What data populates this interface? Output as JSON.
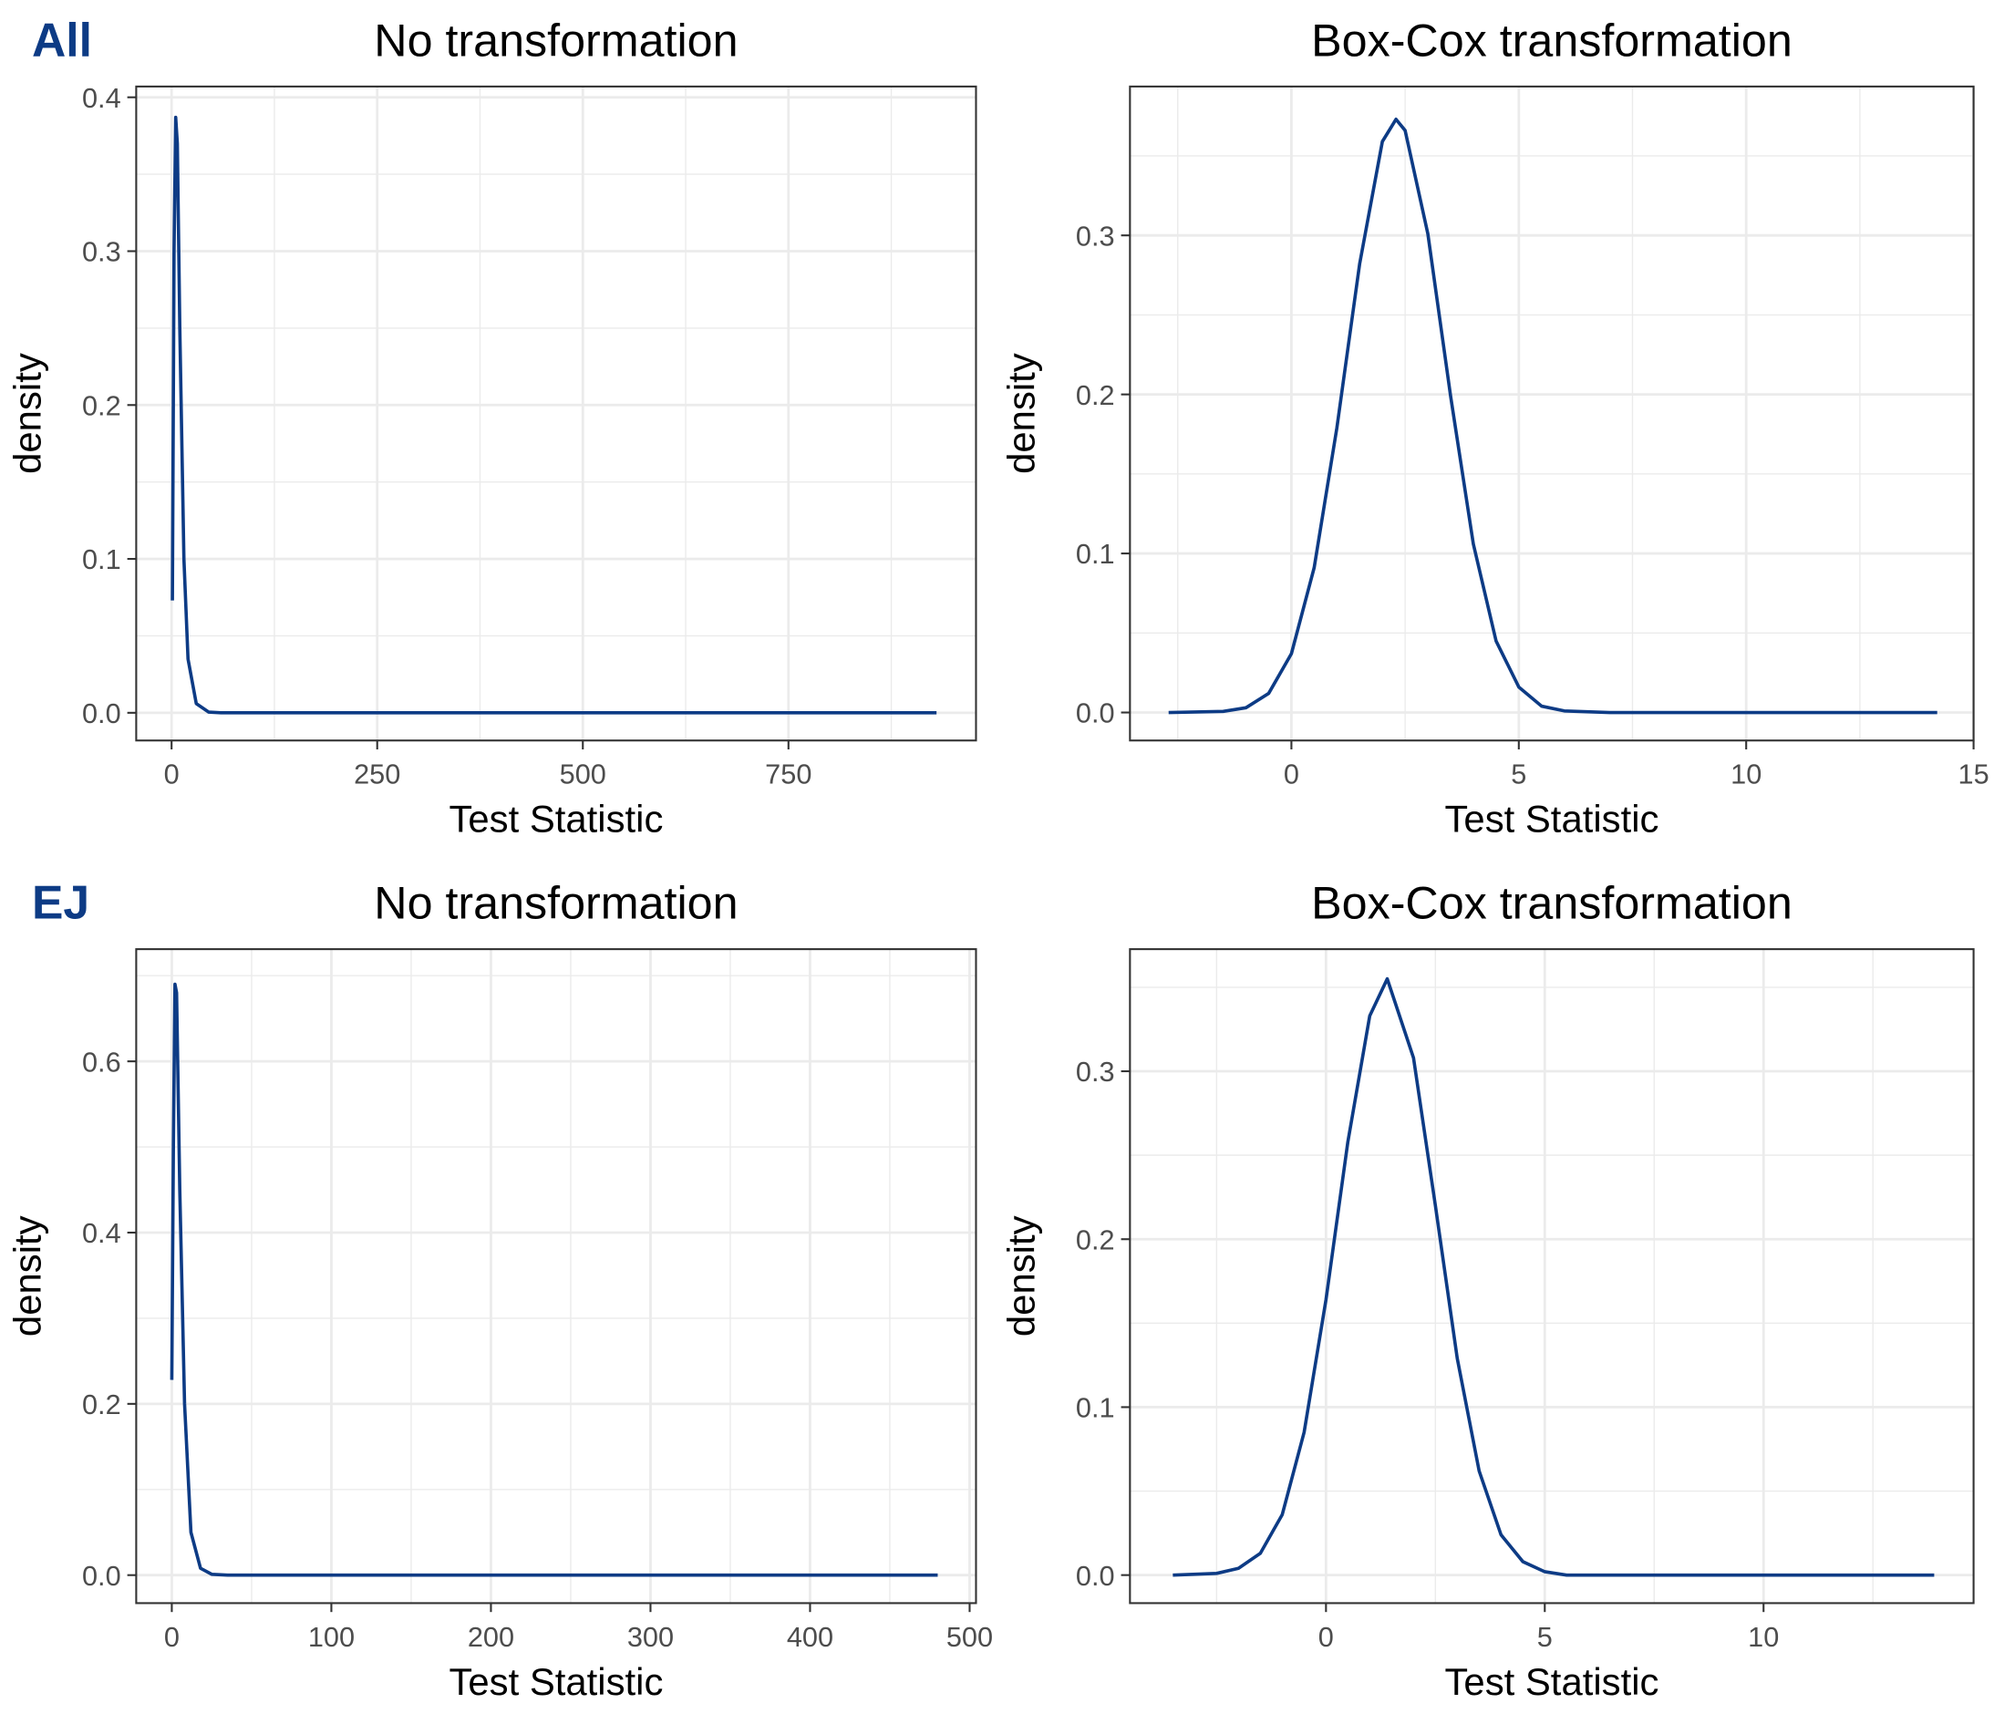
{
  "chart_data": [
    {
      "type": "line",
      "tag": "All",
      "title": "No transformation",
      "xlabel": "Test Statistic",
      "ylabel": "density",
      "x": [
        1,
        3,
        5,
        7,
        10,
        15,
        20,
        30,
        45,
        60,
        930
      ],
      "series": [
        {
          "color": "#0d3b85",
          "values": [
            0.073,
            0.3,
            0.387,
            0.37,
            0.25,
            0.1,
            0.035,
            0.006,
            0.0005,
            0,
            0
          ]
        }
      ],
      "xlim": [
        -43,
        978
      ],
      "ylim": [
        -0.018,
        0.407
      ],
      "xticks": [
        0,
        250,
        500,
        750
      ],
      "yticks": [
        {
          "value": 0,
          "label": "0.0"
        },
        0.1,
        0.2,
        0.3,
        0.4
      ],
      "minor_xticks": [
        125,
        375,
        625,
        875
      ],
      "minor_yticks": [
        0.05,
        0.15,
        0.25,
        0.35
      ],
      "grid": true
    },
    {
      "type": "line",
      "title": "Box-Cox transformation",
      "xlabel": "Test Statistic",
      "ylabel": "density",
      "x": [
        -2.7,
        -1.5,
        -1,
        -0.5,
        0,
        0.5,
        1,
        1.5,
        2,
        2.3,
        2.5,
        3,
        3.5,
        4,
        4.5,
        5,
        5.5,
        6,
        7,
        14.2
      ],
      "series": [
        {
          "color": "#0d3b85",
          "values": [
            0,
            0.0007,
            0.003,
            0.012,
            0.037,
            0.091,
            0.179,
            0.282,
            0.359,
            0.373,
            0.366,
            0.301,
            0.199,
            0.106,
            0.045,
            0.016,
            0.004,
            0.001,
            0,
            0
          ]
        }
      ],
      "xlim": [
        -3.55,
        15
      ],
      "ylim": [
        -0.0176,
        0.3936
      ],
      "xticks": [
        0,
        5,
        10,
        15
      ],
      "yticks": [
        {
          "value": 0,
          "label": "0.0"
        },
        0.1,
        0.2,
        0.3
      ],
      "minor_xticks": [
        -2.5,
        2.5,
        7.5,
        12.5
      ],
      "minor_yticks": [
        0.05,
        0.15,
        0.25,
        0.35
      ],
      "grid": true
    },
    {
      "type": "line",
      "tag": "EJ",
      "title": "No transformation",
      "xlabel": "Test Statistic",
      "ylabel": "density",
      "x": [
        0,
        1,
        2,
        3,
        5,
        8,
        12,
        18,
        25,
        35,
        480
      ],
      "series": [
        {
          "color": "#0d3b85",
          "values": [
            0.228,
            0.5,
            0.69,
            0.68,
            0.45,
            0.2,
            0.05,
            0.008,
            0.001,
            0,
            0
          ]
        }
      ],
      "xlim": [
        -22.3,
        504
      ],
      "ylim": [
        -0.0327,
        0.731
      ],
      "xticks": [
        0,
        100,
        200,
        300,
        400,
        500
      ],
      "yticks": [
        {
          "value": 0,
          "label": "0.0"
        },
        0.2,
        0.4,
        0.6
      ],
      "minor_xticks": [
        50,
        150,
        250,
        350,
        450
      ],
      "minor_yticks": [
        0.1,
        0.3,
        0.5,
        0.7
      ],
      "grid": true
    },
    {
      "type": "line",
      "title": "Box-Cox transformation",
      "xlabel": "Test Statistic",
      "ylabel": "density",
      "x": [
        -3.5,
        -2.5,
        -2,
        -1.5,
        -1,
        -0.5,
        0,
        0.5,
        1,
        1.4,
        2,
        2.5,
        3,
        3.5,
        4,
        4.5,
        5,
        5.5,
        6,
        13.9
      ],
      "series": [
        {
          "color": "#0d3b85",
          "values": [
            0,
            0.001,
            0.004,
            0.013,
            0.036,
            0.085,
            0.164,
            0.258,
            0.333,
            0.355,
            0.308,
            0.22,
            0.129,
            0.062,
            0.024,
            0.008,
            0.002,
            0,
            0,
            0
          ]
        }
      ],
      "xlim": [
        -4.48,
        14.8
      ],
      "ylim": [
        -0.0167,
        0.3727
      ],
      "xticks": [
        0,
        5,
        10
      ],
      "yticks": [
        {
          "value": 0,
          "label": "0.0"
        },
        0.1,
        0.2,
        0.3
      ],
      "minor_xticks": [
        -2.5,
        2.5,
        7.5,
        12.5
      ],
      "minor_yticks": [
        0.05,
        0.15,
        0.25,
        0.35
      ],
      "grid": true
    }
  ]
}
